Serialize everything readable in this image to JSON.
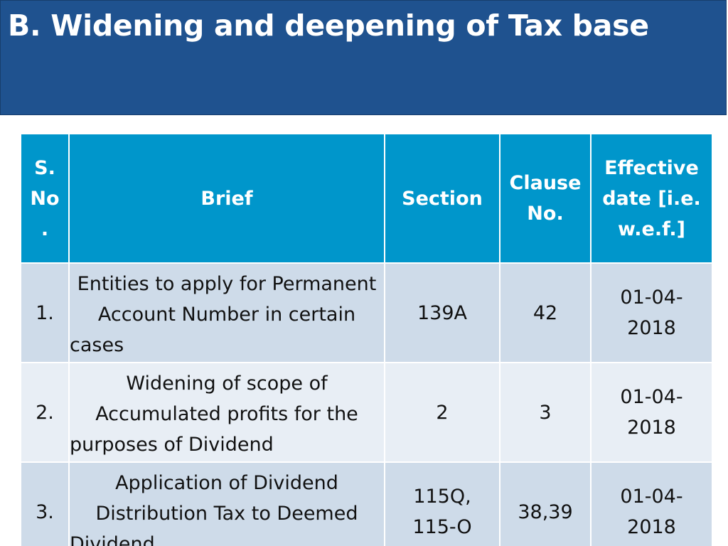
{
  "title": "B. Widening and deepening of Tax base",
  "table": {
    "headers": {
      "sno": "S. No .",
      "brief": "Brief",
      "section": "Section",
      "clause": "Clause No.",
      "effective": "Effective date [i.e. w.e.f.]"
    },
    "rows": [
      {
        "sno": "1.",
        "brief": "Entities to apply for Permanent Account Number in certain cases",
        "section": "139A",
        "clause": "42",
        "effective": "01-04-2018"
      },
      {
        "sno": "2.",
        "brief": "Widening of scope of Accumulated profits for the purposes of Dividend",
        "section": "2",
        "clause": "3",
        "effective": "01-04-2018"
      },
      {
        "sno": "3.",
        "brief": "Application of Dividend Distribution Tax to Deemed Dividend",
        "section": "115Q, 115-O",
        "clause": "38,39",
        "effective": "01-04-2018"
      }
    ]
  },
  "colors": {
    "title_bar": "#1f528f",
    "header_bg": "#0096cb",
    "row_dark": "#cedbe9",
    "row_light": "#e8eef5"
  }
}
